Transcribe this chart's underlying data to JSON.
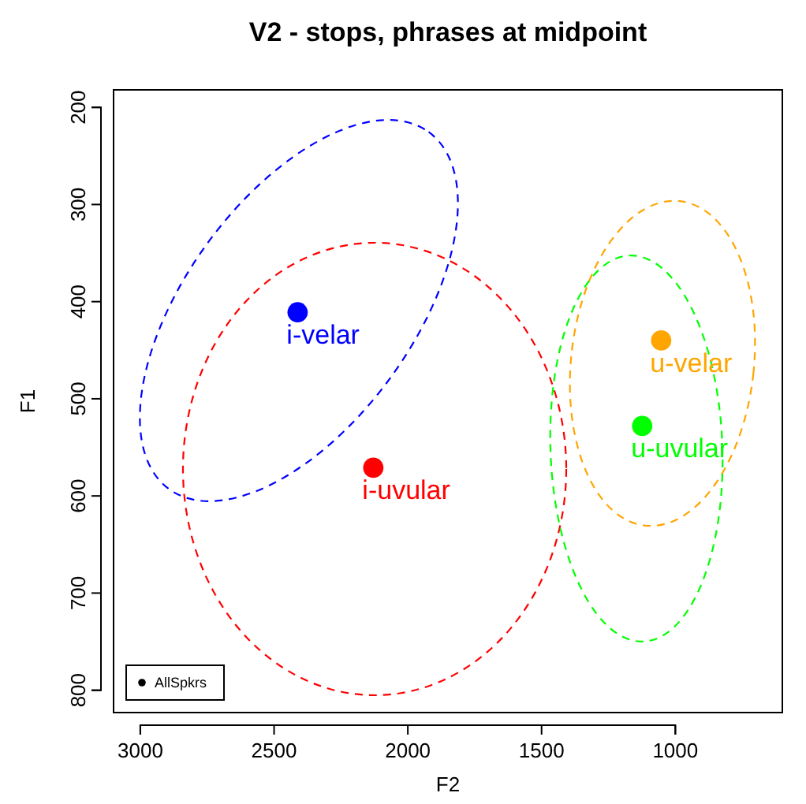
{
  "chart_data": {
    "type": "scatter",
    "title": "V2 - stops, phrases at midpoint",
    "xlabel": "F2",
    "ylabel": "F1",
    "xlim": [
      3100,
      600
    ],
    "ylim": [
      823,
      182
    ],
    "xticks": [
      3000,
      2500,
      2000,
      1500,
      1000
    ],
    "yticks": [
      200,
      300,
      400,
      500,
      600,
      700,
      800
    ],
    "grid": false,
    "legend": "bottom left",
    "marker": "circle",
    "series": [
      {
        "name": "AllSpkrs",
        "color": "#000000",
        "colors": [
          "#0000ff",
          "#ff0000",
          "#ffa500",
          "#00ff00"
        ],
        "x": [
          2412,
          2129,
          1053,
          1124
        ],
        "values": [
          411,
          571,
          440,
          528
        ]
      }
    ],
    "annotations": [
      {
        "text": "i-velar",
        "x": 2412,
        "y": 411
      },
      {
        "text": "i-uvular",
        "x": 2129,
        "y": 571
      },
      {
        "text": "u-velar",
        "x": 1053,
        "y": 440
      },
      {
        "text": "u-uvular",
        "x": 1124,
        "y": 528
      }
    ]
  }
}
